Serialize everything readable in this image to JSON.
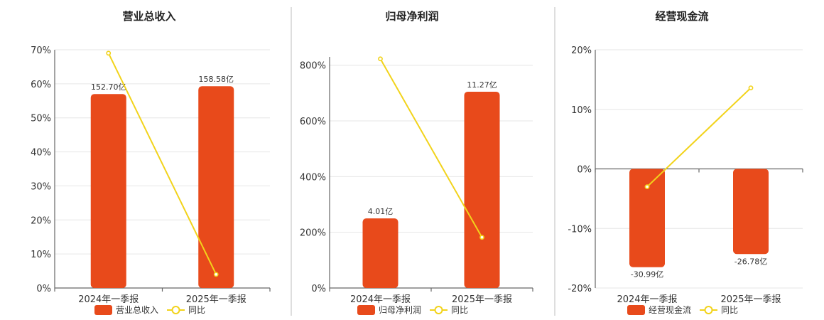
{
  "colors": {
    "bar": "#E84A1B",
    "line": "#F2D31B",
    "line_fill": "#ffffff"
  },
  "chart_data": [
    {
      "type": "bar",
      "title": "营业总收入",
      "categories": [
        "2024年一季报",
        "2025年一季报"
      ],
      "series": [
        {
          "name": "营业总收入",
          "kind": "bar",
          "values": [
            57,
            59.3
          ],
          "labels": [
            "152.70亿",
            "158.58亿"
          ]
        },
        {
          "name": "同比",
          "kind": "line",
          "values": [
            69,
            4
          ]
        }
      ],
      "ylim": [
        0,
        70
      ],
      "yticks": [
        0,
        10,
        20,
        30,
        40,
        50,
        60,
        70
      ],
      "ytick_labels": [
        "0%",
        "10%",
        "20%",
        "30%",
        "40%",
        "50%",
        "60%",
        "70%"
      ],
      "legend": [
        "营业总收入",
        "同比"
      ]
    },
    {
      "type": "bar",
      "title": "归母净利润",
      "categories": [
        "2024年一季报",
        "2025年一季报"
      ],
      "series": [
        {
          "name": "归母净利润",
          "kind": "bar",
          "values": [
            250,
            705
          ],
          "labels": [
            "4.01亿",
            "11.27亿"
          ]
        },
        {
          "name": "同比",
          "kind": "line",
          "values": [
            823,
            182
          ]
        }
      ],
      "ylim": [
        0,
        830
      ],
      "yticks": [
        0,
        200,
        400,
        600,
        800
      ],
      "ytick_labels": [
        "0%",
        "200%",
        "400%",
        "600%",
        "800%"
      ],
      "legend": [
        "归母净利润",
        "同比"
      ]
    },
    {
      "type": "bar",
      "title": "经营现金流",
      "categories": [
        "2024年一季报",
        "2025年一季报"
      ],
      "series": [
        {
          "name": "经营现金流",
          "kind": "bar",
          "values": [
            -16.5,
            -14.3
          ],
          "labels": [
            "-30.99亿",
            "-26.78亿"
          ]
        },
        {
          "name": "同比",
          "kind": "line",
          "values": [
            -3,
            13.6
          ]
        }
      ],
      "ylim": [
        -20,
        20
      ],
      "yticks": [
        -20,
        -10,
        0,
        10,
        20
      ],
      "ytick_labels": [
        "-20%",
        "-10%",
        "0%",
        "10%",
        "20%"
      ],
      "legend": [
        "经营现金流",
        "同比"
      ]
    }
  ]
}
